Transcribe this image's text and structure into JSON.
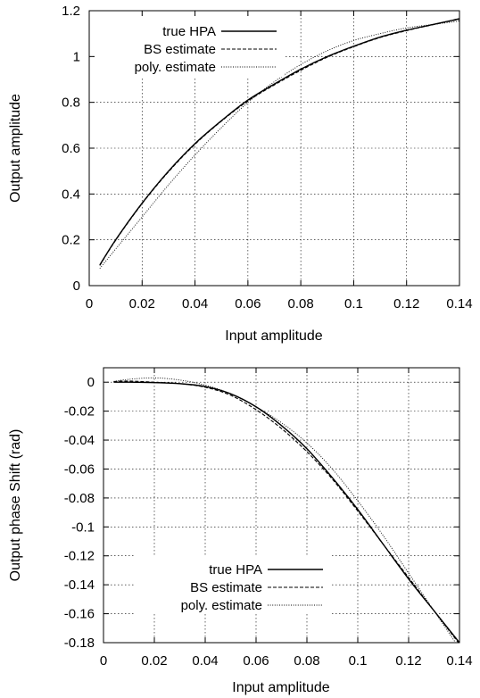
{
  "chart_data": [
    {
      "type": "line",
      "title": "",
      "xlabel": "Input amplitude",
      "ylabel": "Output amplitude",
      "xlim": [
        0,
        0.14
      ],
      "ylim": [
        0,
        1.2
      ],
      "xticks": [
        0,
        0.02,
        0.04,
        0.06,
        0.08,
        0.1,
        0.12,
        0.14
      ],
      "yticks": [
        0,
        0.2,
        0.4,
        0.6,
        0.8,
        1,
        1.2
      ],
      "grid": true,
      "legend_position": "top-left",
      "series": [
        {
          "name": "true HPA",
          "style": "solid",
          "color": "#000000",
          "x": [
            0.004,
            0.01,
            0.02,
            0.03,
            0.04,
            0.05,
            0.06,
            0.07,
            0.08,
            0.09,
            0.1,
            0.11,
            0.12,
            0.13,
            0.14
          ],
          "y": [
            0.09,
            0.2,
            0.36,
            0.5,
            0.62,
            0.72,
            0.81,
            0.88,
            0.945,
            1.0,
            1.045,
            1.085,
            1.115,
            1.14,
            1.165
          ]
        },
        {
          "name": "BS estimate",
          "style": "dashed",
          "color": "#000000",
          "x": [
            0.004,
            0.01,
            0.02,
            0.03,
            0.04,
            0.05,
            0.06,
            0.07,
            0.08,
            0.09,
            0.1,
            0.11,
            0.12,
            0.13,
            0.14
          ],
          "y": [
            0.088,
            0.198,
            0.358,
            0.497,
            0.617,
            0.718,
            0.806,
            0.876,
            0.94,
            0.997,
            1.043,
            1.083,
            1.113,
            1.139,
            1.163
          ]
        },
        {
          "name": "poly. estimate",
          "style": "dotted",
          "color": "#000000",
          "x": [
            0.004,
            0.01,
            0.02,
            0.03,
            0.04,
            0.05,
            0.06,
            0.07,
            0.08,
            0.09,
            0.1,
            0.11,
            0.12,
            0.13,
            0.14
          ],
          "y": [
            0.075,
            0.16,
            0.3,
            0.44,
            0.57,
            0.69,
            0.8,
            0.89,
            0.965,
            1.025,
            1.07,
            1.1,
            1.125,
            1.14,
            1.155
          ]
        }
      ]
    },
    {
      "type": "line",
      "title": "",
      "xlabel": "Input amplitude",
      "ylabel": "Output phase Shift (rad)",
      "xlim": [
        0,
        0.14
      ],
      "ylim": [
        -0.18,
        0.01
      ],
      "xticks": [
        0,
        0.02,
        0.04,
        0.06,
        0.08,
        0.1,
        0.12,
        0.14
      ],
      "yticks": [
        0,
        -0.02,
        -0.04,
        -0.06,
        -0.08,
        -0.1,
        -0.12,
        -0.14,
        -0.16,
        -0.18
      ],
      "grid": true,
      "legend_position": "bottom-left",
      "series": [
        {
          "name": "true HPA",
          "style": "solid",
          "color": "#000000",
          "x": [
            0.004,
            0.01,
            0.02,
            0.03,
            0.04,
            0.05,
            0.06,
            0.07,
            0.08,
            0.09,
            0.1,
            0.11,
            0.12,
            0.13,
            0.14
          ],
          "y": [
            0.0,
            0.0,
            -0.0003,
            -0.001,
            -0.003,
            -0.008,
            -0.017,
            -0.03,
            -0.046,
            -0.066,
            -0.088,
            -0.112,
            -0.136,
            -0.158,
            -0.18
          ]
        },
        {
          "name": "BS estimate",
          "style": "dashed",
          "color": "#000000",
          "x": [
            0.004,
            0.01,
            0.02,
            0.03,
            0.04,
            0.05,
            0.06,
            0.07,
            0.08,
            0.09,
            0.1,
            0.11,
            0.12,
            0.13,
            0.14
          ],
          "y": [
            0.0005,
            0.0008,
            0.0,
            -0.001,
            -0.0035,
            -0.009,
            -0.019,
            -0.032,
            -0.048,
            -0.067,
            -0.089,
            -0.112,
            -0.135,
            -0.158,
            -0.181
          ]
        },
        {
          "name": "poly. estimate",
          "style": "dotted",
          "color": "#000000",
          "x": [
            0.004,
            0.01,
            0.02,
            0.03,
            0.04,
            0.05,
            0.06,
            0.07,
            0.08,
            0.09,
            0.1,
            0.11,
            0.12,
            0.13,
            0.14
          ],
          "y": [
            0.0005,
            0.002,
            0.003,
            0.0015,
            -0.002,
            -0.008,
            -0.017,
            -0.028,
            -0.042,
            -0.06,
            -0.082,
            -0.106,
            -0.132,
            -0.158,
            -0.184
          ]
        }
      ]
    }
  ]
}
